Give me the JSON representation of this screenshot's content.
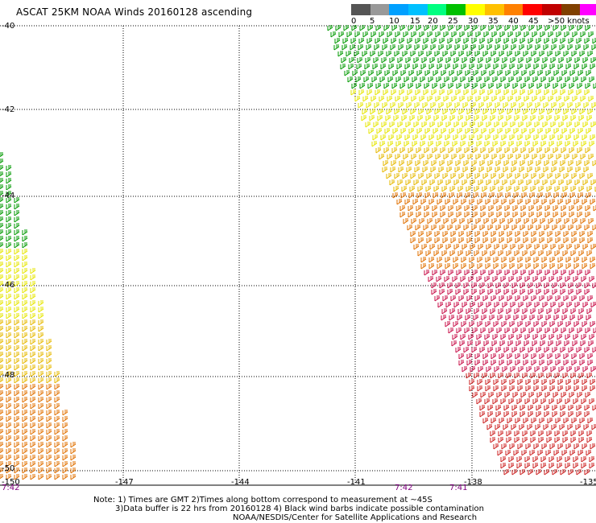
{
  "title": "ASCAT 25KM NOAA Winds 20160128 ascending",
  "legend": {
    "colors": [
      "#555555",
      "#999999",
      "#00a0ff",
      "#00c0ff",
      "#00ff80",
      "#00c000",
      "#ffff00",
      "#ffc000",
      "#ff8000",
      "#ff0000",
      "#c00000",
      "#804000",
      "#ff00ff",
      "#8000c0"
    ],
    "labels": [
      "0",
      "5",
      "10",
      "15",
      "20",
      "25",
      "30",
      "35",
      "40",
      "45",
      ">50 knots"
    ]
  },
  "lat_labels": [
    "-40",
    "-42",
    "-44",
    "-46",
    "-48",
    "-50"
  ],
  "lon_labels": [
    "-150",
    "-147",
    "-144",
    "-141",
    "-138",
    "-135"
  ],
  "times": [
    "7:42",
    "7:42",
    "7:41"
  ],
  "notes": [
    "Note: 1) Times are GMT 2)Times along bottom correspond to measurement at ~45S",
    "3)Data buffer is 22 hrs from 20160128 4) Black wind barbs indicate possible contamination",
    "NOAA/NESDIS/Center for Satellite Applications and Research"
  ],
  "swath_colors": {
    "north": "#009900",
    "mid": "#e6e600",
    "gold": "#e6b800",
    "orange": "#e07000",
    "red": "#cc2222",
    "crimson": "#c8104a"
  }
}
